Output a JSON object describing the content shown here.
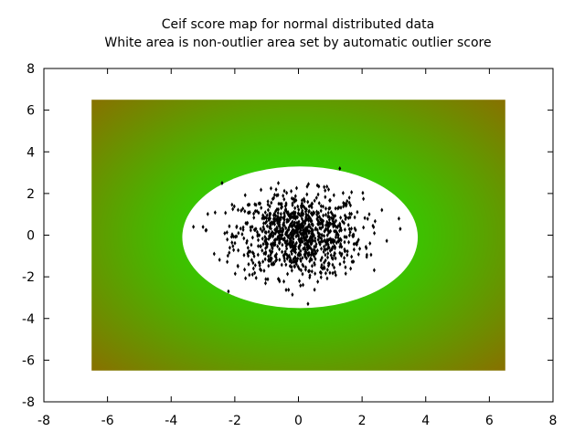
{
  "chart_data": {
    "type": "scatter",
    "title": "Ceif score map for normal distributed data",
    "subtitle": "White area is non-outlier area set by automatic outlier score",
    "xlabel": "",
    "ylabel": "",
    "xlim": [
      -8,
      8
    ],
    "ylim": [
      -8,
      8
    ],
    "xticks": [
      "-8",
      "-6",
      "-4",
      "-2",
      "0",
      "2",
      "4",
      "6",
      "8"
    ],
    "yticks": [
      "-8",
      "-6",
      "-4",
      "-2",
      "0",
      "2",
      "4",
      "6",
      "8"
    ],
    "grid": false,
    "legend": "none",
    "score_map": {
      "x_range": [
        -6.5,
        6.5
      ],
      "y_range": [
        -6.5,
        6.5
      ],
      "low_score_color": "#33cc00",
      "high_score_color": "#8a6e00",
      "non_outlier_area": {
        "shape": "ellipse",
        "center": [
          0.05,
          -0.1
        ],
        "rx": 3.7,
        "ry": 3.4,
        "color": "#ffffff"
      }
    },
    "points": {
      "distribution": "normal",
      "n": 1000,
      "mean": [
        0,
        0
      ],
      "std": [
        1,
        1
      ],
      "color": "#000000",
      "notable": [
        [
          -2.4,
          2.5
        ],
        [
          1.3,
          3.2
        ],
        [
          3.2,
          0.3
        ],
        [
          -3.3,
          0.4
        ],
        [
          -2.2,
          -2.7
        ],
        [
          0.3,
          -3.3
        ]
      ]
    }
  }
}
